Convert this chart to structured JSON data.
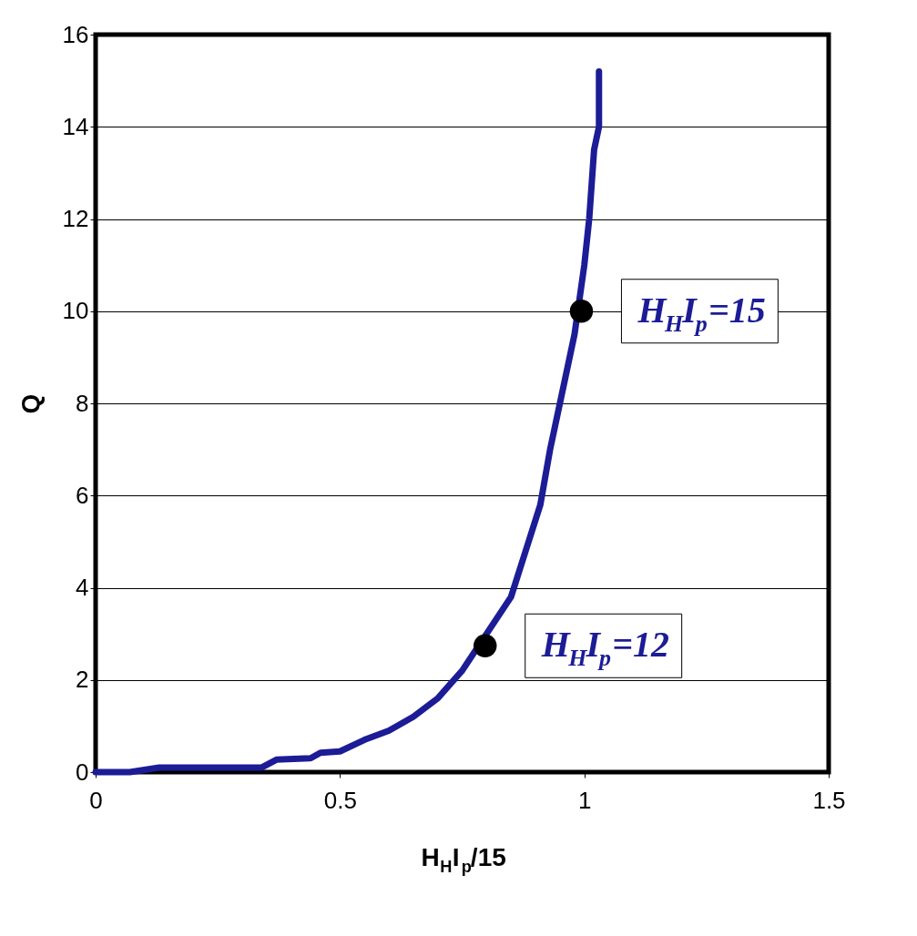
{
  "chart_data": {
    "type": "line",
    "xlabel": "H$_{H}$I$_{p}$/15",
    "ylabel": "Q",
    "xlim": [
      0,
      1.5
    ],
    "xticks": [
      0,
      0.5,
      1,
      1.5
    ],
    "ylim": [
      0,
      16
    ],
    "yticks": [
      0,
      2,
      4,
      6,
      8,
      10,
      12,
      14,
      16
    ],
    "grid": "y",
    "legend": false,
    "series": [
      {
        "color": "#1c1c96",
        "marker": "none",
        "x": [
          0,
          0.07,
          0.13,
          0.34,
          0.37,
          0.44,
          0.46,
          0.5,
          0.55,
          0.6,
          0.65,
          0.7,
          0.75,
          0.85,
          0.88,
          0.91,
          0.93,
          0.96,
          0.98,
          1.0,
          1.01,
          1.02,
          1.03,
          1.03
        ],
        "values": [
          0,
          0,
          0.1,
          0.1,
          0.27,
          0.3,
          0.42,
          0.45,
          0.7,
          0.9,
          1.2,
          1.6,
          2.2,
          3.8,
          4.8,
          5.8,
          7,
          8.5,
          9.5,
          11,
          12,
          13.5,
          14,
          15.2
        ]
      },
      {
        "type": "scatter",
        "color": "#000000",
        "marker": "circle",
        "x": [
          0.797,
          0.994
        ],
        "values": [
          2.74,
          10
        ]
      }
    ],
    "annotations": [
      {
        "text": "H$_{H}$I$_{p}$=12",
        "x": 0.797,
        "y": 2.74
      },
      {
        "text": "H$_{H}$I$_{p}$=15",
        "x": 0.994,
        "y": 10
      }
    ]
  }
}
